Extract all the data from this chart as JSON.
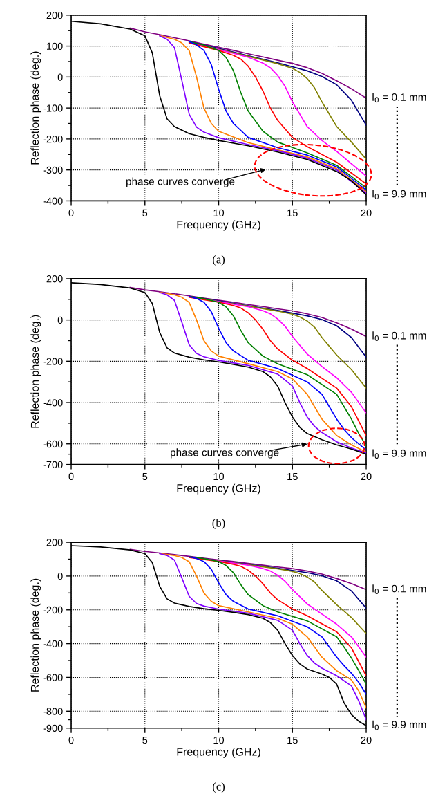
{
  "chart_data": [
    {
      "type": "line",
      "title": "(a)",
      "xlabel": "Frequency (GHz)",
      "ylabel": "Reflection phase (deg.)",
      "xlim": [
        0,
        20
      ],
      "ylim": [
        -400,
        200
      ],
      "xticks": [
        0,
        5,
        10,
        15,
        20
      ],
      "yticks": [
        -400,
        -300,
        -200,
        -100,
        0,
        100,
        200
      ],
      "grid": true,
      "line_style": "solid",
      "marker": "none",
      "annotations": [
        "phase curves converge"
      ],
      "series": [
        {
          "name": "l$_{0}$ = 0.1 mm",
          "color": "#800080",
          "x": [
            4,
            5,
            6,
            7,
            8,
            9,
            10,
            11,
            12,
            13,
            14,
            15,
            16,
            17,
            18,
            19,
            20
          ],
          "values": [
            158,
            146,
            137,
            127,
            117,
            106,
            96,
            86,
            75,
            65,
            54,
            44,
            30,
            12,
            -12,
            -38,
            -68
          ]
        },
        {
          "color": "#000080",
          "x": [
            8,
            10,
            12,
            14,
            16,
            17,
            18,
            19,
            20
          ],
          "values": [
            114,
            92,
            69,
            46,
            20,
            2,
            -25,
            -75,
            -155
          ]
        },
        {
          "color": "#808000",
          "x": [
            8,
            10,
            12,
            14,
            15,
            15.5,
            16,
            16.5,
            17,
            18,
            19,
            20
          ],
          "values": [
            113,
            90,
            67,
            43,
            28,
            15,
            -5,
            -35,
            -80,
            -160,
            -210,
            -265
          ]
        },
        {
          "color": "#ff00ff",
          "x": [
            8,
            10,
            12,
            13,
            13.5,
            14,
            14.5,
            15,
            16,
            17,
            18,
            20
          ],
          "values": [
            112,
            89,
            64,
            45,
            30,
            5,
            -30,
            -80,
            -160,
            -205,
            -240,
            -320
          ]
        },
        {
          "color": "#ff0000",
          "x": [
            8,
            10,
            11,
            11.5,
            12,
            12.5,
            13,
            13.5,
            14,
            15,
            16,
            18,
            20
          ],
          "values": [
            110,
            86,
            70,
            58,
            35,
            0,
            -45,
            -100,
            -140,
            -195,
            -225,
            -275,
            -345
          ]
        },
        {
          "color": "#008000",
          "x": [
            8,
            9,
            10,
            10.5,
            11,
            11.5,
            12,
            13,
            14,
            16,
            18,
            20
          ],
          "values": [
            114,
            103,
            86,
            63,
            20,
            -50,
            -110,
            -175,
            -210,
            -245,
            -285,
            -358
          ]
        },
        {
          "color": "#0000ff",
          "x": [
            8,
            8.5,
            9,
            9.5,
            10,
            10.5,
            11,
            12,
            14,
            16,
            18,
            20
          ],
          "values": [
            114,
            104,
            86,
            40,
            -40,
            -110,
            -150,
            -195,
            -228,
            -252,
            -290,
            -365
          ]
        },
        {
          "color": "#ff8000",
          "x": [
            6,
            7,
            7.5,
            8,
            8.5,
            9,
            9.5,
            10,
            12,
            14,
            16,
            18,
            20
          ],
          "values": [
            134,
            122,
            110,
            85,
            0,
            -100,
            -150,
            -175,
            -212,
            -235,
            -258,
            -296,
            -370
          ]
        },
        {
          "color": "#8000ff",
          "x": [
            6,
            6.5,
            7,
            7.5,
            8,
            8.5,
            9,
            10,
            12,
            14,
            16,
            18,
            20
          ],
          "values": [
            133,
            122,
            95,
            -10,
            -120,
            -162,
            -178,
            -196,
            -218,
            -238,
            -262,
            -300,
            -375
          ]
        },
        {
          "name": "l$_{0}$ = 9.9 mm",
          "color": "#000000",
          "x": [
            0,
            2,
            4,
            5,
            5.5,
            6,
            6.5,
            7,
            8,
            9,
            10,
            12,
            14,
            16,
            18,
            19,
            20
          ],
          "values": [
            180,
            172,
            155,
            133,
            78,
            -60,
            -135,
            -160,
            -183,
            -195,
            -205,
            -222,
            -242,
            -266,
            -305,
            -335,
            -380
          ]
        }
      ]
    },
    {
      "type": "line",
      "title": "(b)",
      "xlabel": "Frequency (GHz)",
      "ylabel": "Reflection phase (deg.)",
      "xlim": [
        0,
        20
      ],
      "ylim": [
        -700,
        200
      ],
      "xticks": [
        0,
        5,
        10,
        15,
        20
      ],
      "yticks": [
        -700,
        -600,
        -400,
        -200,
        0,
        200
      ],
      "grid": true,
      "line_style": "solid",
      "marker": "none",
      "annotations": [
        "phase curves converge"
      ],
      "series": [
        {
          "name": "l$_{0}$ = 0.1 mm",
          "color": "#800080",
          "x": [
            4,
            5,
            6,
            7,
            8,
            9,
            10,
            11,
            12,
            13,
            14,
            15,
            16,
            17,
            18,
            19,
            20
          ],
          "values": [
            158,
            146,
            137,
            127,
            117,
            106,
            96,
            86,
            75,
            65,
            54,
            44,
            30,
            12,
            -14,
            -44,
            -80
          ]
        },
        {
          "color": "#000080",
          "x": [
            8,
            10,
            12,
            14,
            16,
            17,
            18,
            19,
            20
          ],
          "values": [
            114,
            92,
            69,
            46,
            20,
            2,
            -28,
            -85,
            -180
          ]
        },
        {
          "color": "#808000",
          "x": [
            8,
            10,
            12,
            14,
            15,
            15.5,
            16,
            16.5,
            17,
            18,
            19,
            20
          ],
          "values": [
            113,
            90,
            67,
            43,
            28,
            15,
            -5,
            -35,
            -85,
            -170,
            -240,
            -330
          ]
        },
        {
          "color": "#ff00ff",
          "x": [
            8,
            10,
            12,
            13,
            13.5,
            14,
            14.5,
            15,
            16,
            17,
            18,
            19,
            20
          ],
          "values": [
            112,
            89,
            64,
            45,
            30,
            5,
            -30,
            -80,
            -165,
            -225,
            -280,
            -350,
            -450
          ]
        },
        {
          "color": "#ff0000",
          "x": [
            8,
            10,
            11,
            11.5,
            12,
            12.5,
            13,
            13.5,
            14,
            15,
            16,
            18,
            19,
            20
          ],
          "values": [
            110,
            86,
            70,
            58,
            35,
            0,
            -45,
            -100,
            -140,
            -195,
            -235,
            -330,
            -420,
            -560
          ]
        },
        {
          "color": "#008000",
          "x": [
            8,
            9,
            10,
            10.5,
            11,
            11.5,
            12,
            13,
            14,
            16,
            18,
            18.5,
            19,
            19.5,
            20
          ],
          "values": [
            114,
            103,
            86,
            63,
            20,
            -50,
            -110,
            -175,
            -212,
            -265,
            -360,
            -420,
            -480,
            -550,
            -610
          ]
        },
        {
          "color": "#0000ff",
          "x": [
            8,
            8.5,
            9,
            9.5,
            10,
            10.5,
            11,
            12,
            14,
            16,
            17,
            17.5,
            18,
            18.5,
            19,
            20
          ],
          "values": [
            114,
            104,
            86,
            40,
            -40,
            -110,
            -150,
            -195,
            -235,
            -300,
            -360,
            -420,
            -480,
            -530,
            -570,
            -630
          ]
        },
        {
          "color": "#ff8000",
          "x": [
            6,
            7,
            7.5,
            8,
            8.5,
            9,
            9.5,
            10,
            12,
            14,
            15,
            16,
            16.5,
            17,
            17.5,
            18,
            19,
            20
          ],
          "values": [
            134,
            122,
            110,
            85,
            0,
            -100,
            -150,
            -175,
            -212,
            -250,
            -285,
            -360,
            -420,
            -480,
            -520,
            -560,
            -605,
            -640
          ]
        },
        {
          "color": "#8000ff",
          "x": [
            6,
            6.5,
            7,
            7.5,
            8,
            8.5,
            9,
            10,
            12,
            14,
            15,
            15.5,
            16,
            16.5,
            17,
            18,
            19,
            20
          ],
          "values": [
            133,
            122,
            95,
            -10,
            -120,
            -162,
            -178,
            -196,
            -220,
            -262,
            -320,
            -400,
            -470,
            -515,
            -545,
            -590,
            -620,
            -645
          ]
        },
        {
          "name": "l$_{0}$ = 9.9 mm",
          "color": "#000000",
          "x": [
            0,
            2,
            4,
            5,
            5.5,
            6,
            6.5,
            7,
            8,
            9,
            10,
            11,
            12,
            13,
            13.5,
            14,
            14.5,
            15,
            15.5,
            16,
            17,
            18,
            19,
            20
          ],
          "values": [
            180,
            172,
            155,
            133,
            80,
            -60,
            -135,
            -160,
            -180,
            -193,
            -203,
            -215,
            -228,
            -250,
            -275,
            -320,
            -400,
            -470,
            -520,
            -550,
            -580,
            -605,
            -625,
            -650
          ]
        }
      ]
    },
    {
      "type": "line",
      "title": "(c)",
      "xlabel": "Frequency (GHz)",
      "ylabel": "Reflection phase (deg.)",
      "xlim": [
        0,
        20
      ],
      "ylim": [
        -900,
        200
      ],
      "xticks": [
        0,
        5,
        10,
        15,
        20
      ],
      "yticks": [
        -900,
        -800,
        -600,
        -400,
        -200,
        0,
        200
      ],
      "grid": true,
      "line_style": "solid",
      "marker": "none",
      "series": [
        {
          "name": "l$_{0}$ = 0.1 mm",
          "color": "#800080",
          "x": [
            4,
            5,
            6,
            7,
            8,
            9,
            10,
            11,
            12,
            13,
            14,
            15,
            16,
            17,
            18,
            19,
            20
          ],
          "values": [
            158,
            146,
            137,
            127,
            117,
            106,
            96,
            86,
            75,
            65,
            54,
            44,
            30,
            12,
            -14,
            -44,
            -80
          ]
        },
        {
          "color": "#000080",
          "x": [
            8,
            10,
            12,
            14,
            16,
            17,
            18,
            19,
            20
          ],
          "values": [
            114,
            92,
            69,
            46,
            20,
            2,
            -28,
            -88,
            -190
          ]
        },
        {
          "color": "#808000",
          "x": [
            8,
            10,
            12,
            14,
            15,
            15.5,
            16,
            16.5,
            17,
            18,
            19,
            20
          ],
          "values": [
            113,
            90,
            67,
            43,
            28,
            15,
            -5,
            -35,
            -85,
            -170,
            -245,
            -340
          ]
        },
        {
          "color": "#ff00ff",
          "x": [
            8,
            10,
            12,
            13,
            13.5,
            14,
            14.5,
            15,
            16,
            17,
            18,
            19,
            20
          ],
          "values": [
            112,
            89,
            64,
            45,
            30,
            5,
            -30,
            -80,
            -165,
            -225,
            -285,
            -360,
            -480
          ]
        },
        {
          "color": "#ff0000",
          "x": [
            8,
            10,
            11,
            11.5,
            12,
            12.5,
            13,
            13.5,
            14,
            15,
            16,
            18,
            19,
            20
          ],
          "values": [
            110,
            86,
            70,
            58,
            35,
            0,
            -45,
            -100,
            -140,
            -195,
            -235,
            -330,
            -425,
            -590
          ]
        },
        {
          "color": "#008000",
          "x": [
            8,
            9,
            10,
            10.5,
            11,
            11.5,
            12,
            13,
            14,
            16,
            18,
            18.5,
            19,
            19.5,
            20
          ],
          "values": [
            114,
            103,
            86,
            63,
            20,
            -50,
            -110,
            -175,
            -212,
            -265,
            -360,
            -420,
            -485,
            -560,
            -640
          ]
        },
        {
          "color": "#0000ff",
          "x": [
            8,
            8.5,
            9,
            9.5,
            10,
            10.5,
            11,
            12,
            14,
            16,
            17,
            17.5,
            18,
            18.5,
            19,
            19.5,
            20
          ],
          "values": [
            114,
            104,
            86,
            40,
            -40,
            -110,
            -150,
            -195,
            -235,
            -300,
            -360,
            -420,
            -480,
            -530,
            -575,
            -630,
            -700
          ]
        },
        {
          "color": "#ff8000",
          "x": [
            6,
            7,
            7.5,
            8,
            8.5,
            9,
            9.5,
            10,
            12,
            14,
            15,
            16,
            16.5,
            17,
            17.5,
            18,
            19,
            19.5,
            20
          ],
          "values": [
            134,
            122,
            110,
            85,
            0,
            -100,
            -150,
            -175,
            -212,
            -250,
            -285,
            -360,
            -420,
            -480,
            -520,
            -560,
            -615,
            -680,
            -780
          ]
        },
        {
          "color": "#8000ff",
          "x": [
            6,
            6.5,
            7,
            7.5,
            8,
            8.5,
            9,
            10,
            12,
            14,
            15,
            15.5,
            16,
            16.5,
            17,
            18,
            19,
            19.5,
            20
          ],
          "values": [
            133,
            122,
            95,
            -10,
            -120,
            -162,
            -178,
            -196,
            -220,
            -262,
            -320,
            -400,
            -470,
            -515,
            -545,
            -590,
            -650,
            -740,
            -850
          ]
        },
        {
          "name": "l$_{0}$ = 9.9 mm",
          "color": "#000000",
          "x": [
            0,
            2,
            4,
            5,
            5.5,
            6,
            6.5,
            7,
            8,
            9,
            10,
            11,
            12,
            13,
            13.5,
            14,
            14.5,
            15,
            15.5,
            16,
            17,
            17.5,
            18,
            18.5,
            19,
            19.5,
            20
          ],
          "values": [
            180,
            172,
            155,
            133,
            80,
            -60,
            -135,
            -160,
            -180,
            -193,
            -203,
            -215,
            -228,
            -250,
            -275,
            -320,
            -400,
            -470,
            -520,
            -550,
            -580,
            -600,
            -640,
            -750,
            -820,
            -860,
            -885
          ]
        }
      ]
    }
  ]
}
